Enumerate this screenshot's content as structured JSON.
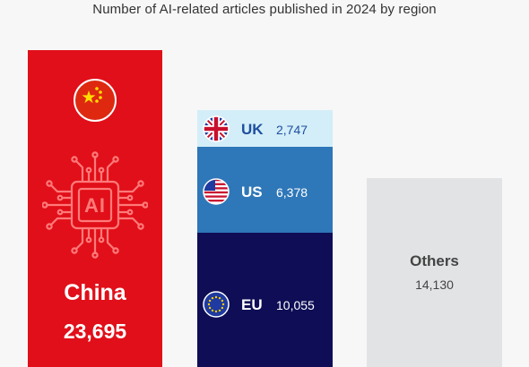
{
  "chart_data": {
    "type": "bar",
    "title": "Number of AI-related articles published in 2024 by region",
    "categories": [
      "China",
      "UK",
      "US",
      "EU",
      "Others"
    ],
    "values": [
      23695,
      2747,
      6378,
      10055,
      14130
    ],
    "value_labels": [
      "23,695",
      "2,747",
      "6,378",
      "10,055",
      "14,130"
    ],
    "ylim": [
      0,
      23695
    ],
    "stacked_group": [
      "EU",
      "US",
      "UK"
    ],
    "center_icon": "ai-chip-icon",
    "colors": {
      "China": "#e10f19",
      "UK": "#d3eef8",
      "US": "#2e77b8",
      "EU": "#0e0d55",
      "Others": "#e2e3e5",
      "UK_text": "#1f4fa0",
      "US_text": "#ffffff",
      "EU_text": "#ffffff",
      "Others_text": "#444444",
      "China_text": "#ffffff"
    },
    "flags": {
      "China": "china-flag-icon",
      "UK": "uk-flag-icon",
      "US": "us-flag-icon",
      "EU": "eu-flag-icon"
    }
  }
}
